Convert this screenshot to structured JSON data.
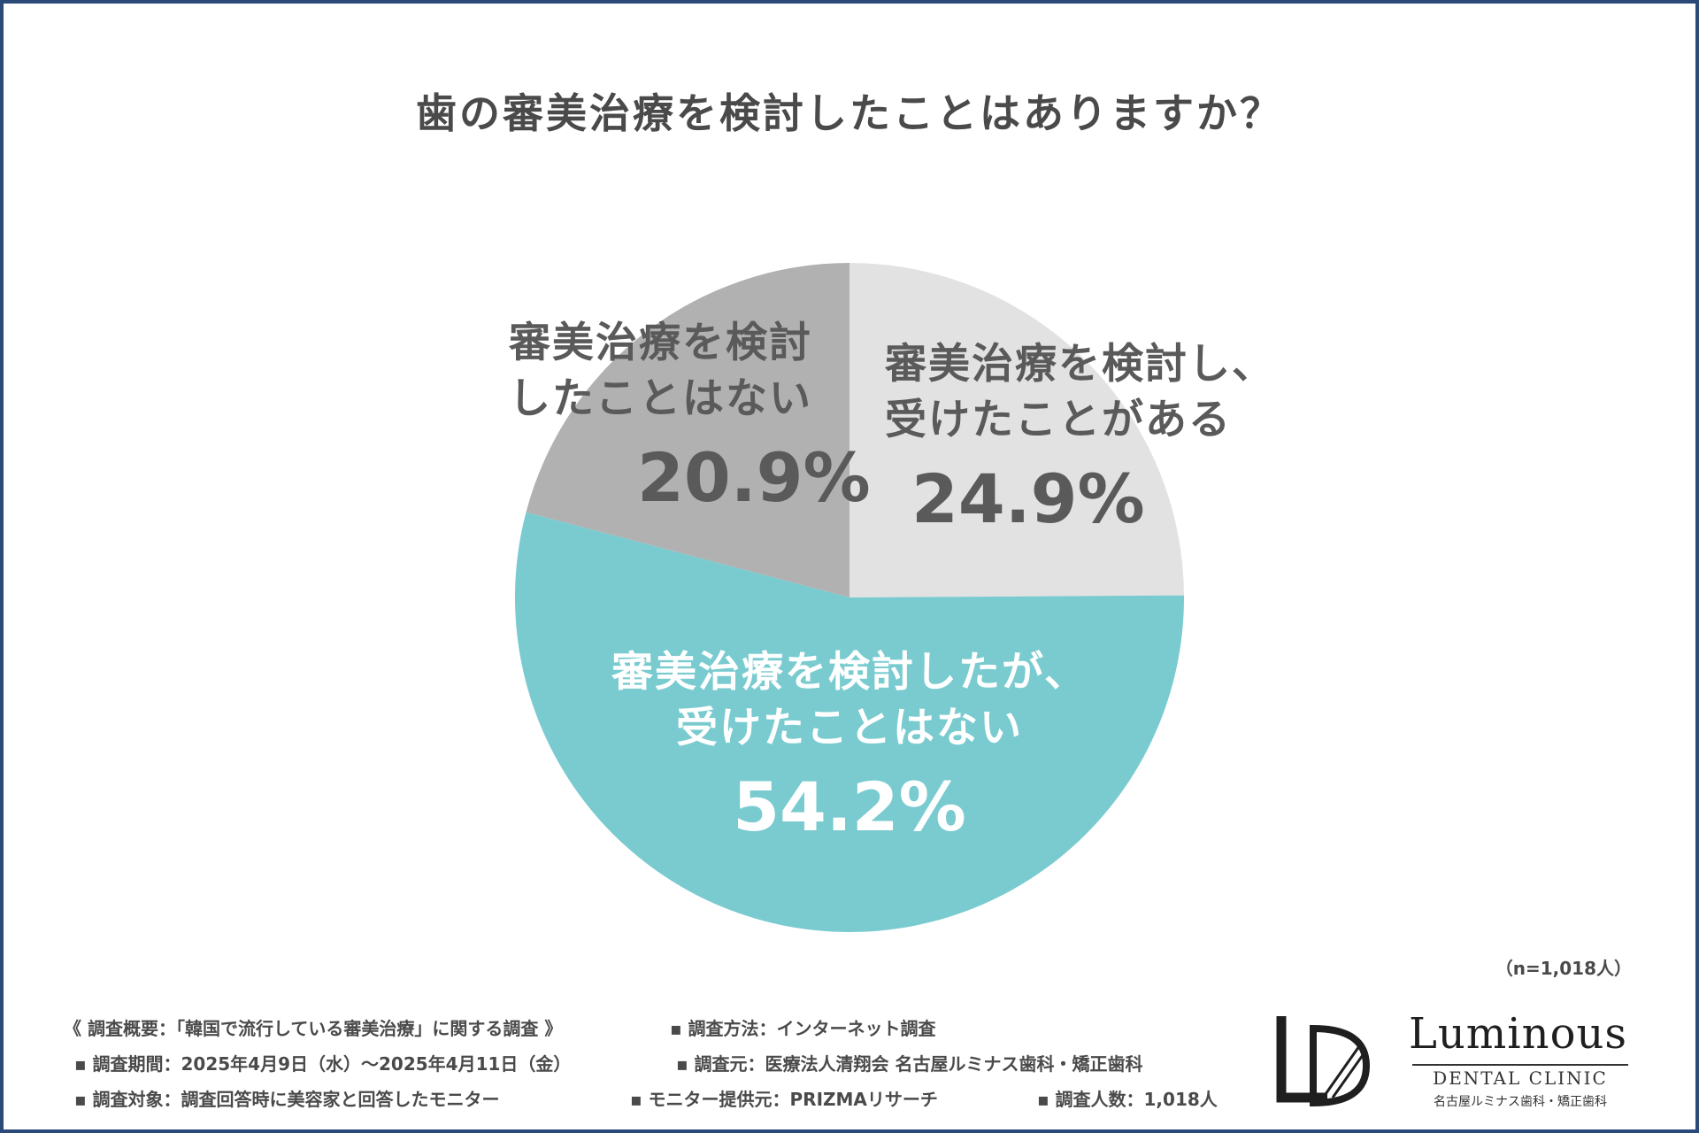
{
  "title": "歯の審美治療を検討したことはありますか？",
  "chart_data": {
    "type": "pie",
    "title": "歯の審美治療を検討したことはありますか？",
    "slices": [
      {
        "label": "審美治療を検討し、受けたことがある",
        "value": 24.9,
        "display": "24.9%",
        "color": "#e2e2e2"
      },
      {
        "label": "審美治療を検討したが、受けたことはない",
        "value": 54.2,
        "display": "54.2%",
        "color": "#79cbd0"
      },
      {
        "label": "審美治療を検討したことはない",
        "value": 20.9,
        "display": "20.9%",
        "color": "#b1b1b1"
      }
    ],
    "start": "12 o'clock",
    "direction": "clockwise"
  },
  "labels": {
    "light": {
      "line1": "審美治療を検討し、",
      "line2": "受けたことがある",
      "pct": "24.9%"
    },
    "teal": {
      "line1": "審美治療を検討したが、",
      "line2": "受けたことはない",
      "pct": "54.2%"
    },
    "gray": {
      "line1": "審美治療を検討",
      "line2": "したことはない",
      "pct": "20.9%"
    }
  },
  "sample_size": "（n=1,018人）",
  "footnotes": {
    "overview": "《 調査概要：「韓国で流行している審美治療」に関する調査 》",
    "method": "▪ 調査方法：インターネット調査",
    "period": "▪ 調査期間：2025年4月9日（水）〜2025年4月11日（金）",
    "source": "▪ 調査元：医療法人清翔会 名古屋ルミナス歯科・矯正歯科",
    "target": "▪ 調査対象：調査回答時に美容家と回答したモニター",
    "provider": "▪ モニター提供元：PRIZMAリサーチ",
    "count": "▪ 調査人数：1,018人"
  },
  "logo": {
    "mark": "LD",
    "name": "Luminous",
    "sub": "DENTAL CLINIC",
    "jp": "名古屋ルミナス歯科・矯正歯科"
  },
  "colors": {
    "frame": "#2b4a7a",
    "teal": "#79cbd0",
    "gray": "#b1b1b1",
    "light": "#e2e2e2",
    "text": "#595959"
  }
}
